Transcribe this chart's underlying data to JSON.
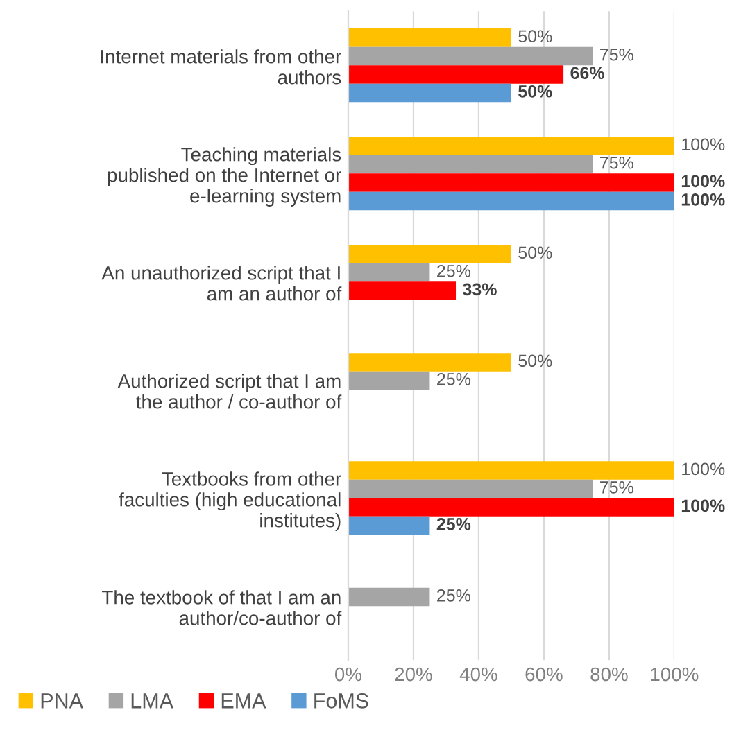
{
  "chart_data": {
    "type": "bar",
    "orientation": "horizontal",
    "categories": [
      "Internet materials from other\nauthors",
      "Teaching materials\npublished on the Internet or\ne-learning system",
      "An unauthorized script that I\nam an author of",
      "Authorized script that I am\nthe author / co-author of",
      "Textbooks from other\nfaculties (high educational\ninstitutes)",
      "The textbook of that I am an\nauthor/co-author of"
    ],
    "series": [
      {
        "name": "PNA",
        "color": "#ffc000",
        "values": [
          50,
          100,
          50,
          50,
          100,
          null
        ],
        "value_labels": [
          "50%",
          "100%",
          "50%",
          "50%",
          "100%",
          null
        ]
      },
      {
        "name": "LMA",
        "color": "#a5a5a5",
        "values": [
          75,
          75,
          25,
          25,
          75,
          25
        ],
        "value_labels": [
          "75%",
          "75%",
          "25%",
          "25%",
          "75%",
          "25%"
        ]
      },
      {
        "name": "EMA",
        "color": "#ff0000",
        "values": [
          66,
          100,
          33,
          null,
          100,
          null
        ],
        "value_labels": [
          "66%",
          "100%",
          "33%",
          null,
          "100%",
          null
        ]
      },
      {
        "name": "FoMS",
        "color": "#5b9bd5",
        "values": [
          50,
          100,
          null,
          null,
          25,
          null
        ],
        "value_labels": [
          "50%",
          "100%",
          null,
          null,
          "25%",
          null
        ]
      }
    ],
    "xlim": [
      0,
      100
    ],
    "xticks": [
      {
        "value": 0,
        "label": "0%"
      },
      {
        "value": 20,
        "label": "20%"
      },
      {
        "value": 40,
        "label": "40%"
      },
      {
        "value": 60,
        "label": "60%"
      },
      {
        "value": 80,
        "label": "80%"
      },
      {
        "value": 100,
        "label": "100%"
      }
    ],
    "grid": "x",
    "legend": "bottom"
  }
}
